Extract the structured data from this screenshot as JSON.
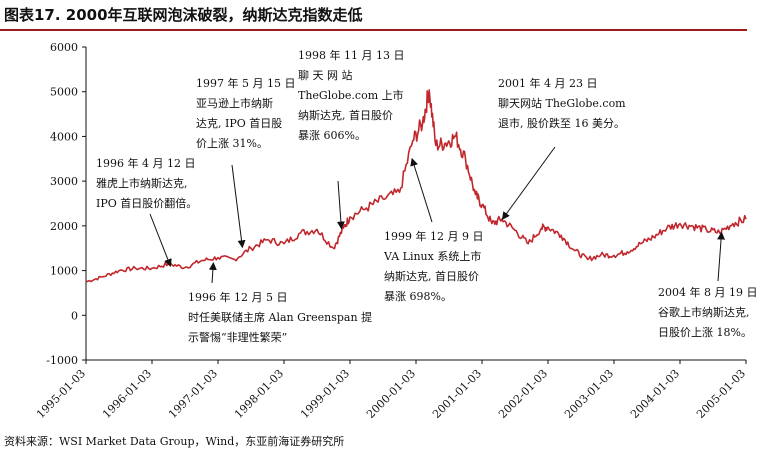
{
  "title": "图表17. 2000年互联网泡沫破裂，纳斯达克指数走低",
  "source": "资料来源：WSI Market Data Group，Wind，东亚前海证券研究所",
  "colors": {
    "line": "#c0282d",
    "accent": "#9b1b1b"
  },
  "chart_data": {
    "type": "line",
    "title": "2000年互联网泡沫破裂，纳斯达克指数走低",
    "xlabel": "",
    "ylabel": "",
    "ylim": [
      -1000,
      6000
    ],
    "yticks": [
      -1000,
      0,
      1000,
      2000,
      3000,
      4000,
      5000,
      6000
    ],
    "xticks": [
      "1995-01-03",
      "1996-01-03",
      "1997-01-03",
      "1998-01-03",
      "1999-01-03",
      "2000-01-03",
      "2001-01-03",
      "2002-01-03",
      "2003-01-03",
      "2004-01-03",
      "2005-01-03"
    ],
    "series": [
      {
        "name": "纳斯达克指数",
        "x": [
          1995.0,
          1995.25,
          1995.5,
          1995.75,
          1996.0,
          1996.25,
          1996.5,
          1996.75,
          1997.0,
          1997.25,
          1997.5,
          1997.75,
          1998.0,
          1998.25,
          1998.5,
          1998.75,
          1998.9,
          1999.0,
          1999.25,
          1999.5,
          1999.75,
          1999.95,
          2000.1,
          2000.2,
          2000.3,
          2000.45,
          2000.6,
          2000.75,
          2000.9,
          2001.0,
          2001.15,
          2001.3,
          2001.5,
          2001.7,
          2001.9,
          2002.0,
          2002.2,
          2002.4,
          2002.6,
          2002.8,
          2003.0,
          2003.2,
          2003.4,
          2003.6,
          2003.8,
          2004.0,
          2004.2,
          2004.4,
          2004.6,
          2004.8,
          2005.0
        ],
        "values": [
          750,
          860,
          1000,
          1050,
          1050,
          1150,
          1070,
          1220,
          1290,
          1250,
          1500,
          1690,
          1600,
          1840,
          1920,
          1500,
          1950,
          2200,
          2400,
          2600,
          2750,
          3900,
          4300,
          5040,
          3800,
          3850,
          4000,
          3500,
          2700,
          2470,
          2050,
          2150,
          1900,
          1600,
          1950,
          1970,
          1790,
          1450,
          1250,
          1350,
          1340,
          1420,
          1600,
          1750,
          1950,
          2050,
          1990,
          1910,
          1850,
          2050,
          2150
        ]
      }
    ],
    "annotations": [
      {
        "lines": [
          "1996 年 4 月 12 日",
          "雅虎上市纳斯达克,",
          "IPO 首日股价翻倍。"
        ],
        "x": 1996.28,
        "y": 1100
      },
      {
        "lines": [
          "1996 年 12 月 5 日",
          "时任美联储主席  Alan Greenspan  提",
          "示警惕“非理性繁荣”"
        ],
        "x": 1996.93,
        "y": 1170
      },
      {
        "lines": [
          "1997 年 5 月 15 日",
          "亚马逊上市纳斯",
          "达克, IPO 首日股",
          "价上涨 31%。"
        ],
        "x": 1997.37,
        "y": 1520
      },
      {
        "lines": [
          "1998 年 11 月 13 日",
          "聊    天    网    站",
          "TheGlobe.com  上市",
          "纳斯达克, 首日股价",
          "暴涨 606%。"
        ],
        "x": 1998.87,
        "y": 1940
      },
      {
        "lines": [
          "1999 年 12 月 9 日",
          "VA Linux  系统上市",
          "纳斯达克, 首日股价",
          "暴涨 698%。"
        ],
        "x": 1999.94,
        "y": 3500
      },
      {
        "lines": [
          "2001 年 4 月 23 日",
          "聊天网站  TheGlobe.com",
          "退市, 股价跌至 16 美分。"
        ],
        "x": 2001.31,
        "y": 2150
      },
      {
        "lines": [
          "2004 年 8 月 19 日",
          "谷歌上市纳斯达克,",
          "日股价上涨 18%。"
        ],
        "x": 2004.63,
        "y": 1850
      }
    ]
  }
}
